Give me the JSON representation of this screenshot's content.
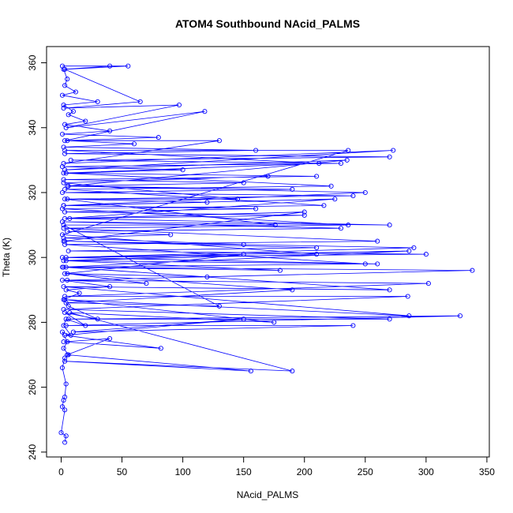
{
  "chart_data": {
    "type": "scatter",
    "title": "ATOM4 Southbound NAcid_PALMS",
    "xlabel": "NAcid_PALMS",
    "ylabel": "Theta (K)",
    "xlim": [
      -12,
      352
    ],
    "ylim": [
      238.5,
      365
    ],
    "x_ticks": [
      0,
      50,
      100,
      150,
      200,
      250,
      300,
      350
    ],
    "y_ticks": [
      240,
      260,
      280,
      300,
      320,
      340,
      360
    ],
    "grid": false,
    "legend": "none",
    "series_color": "#0000FF",
    "series": [
      {
        "style": "points-and-lines",
        "points": [
          [
            3,
            243
          ],
          [
            4,
            245
          ],
          [
            0,
            246
          ],
          [
            3,
            253
          ],
          [
            1,
            254
          ],
          [
            2,
            256
          ],
          [
            3,
            257
          ],
          [
            4,
            261
          ],
          [
            1,
            266
          ],
          [
            3,
            269
          ],
          [
            6,
            270
          ],
          [
            2,
            272
          ],
          [
            5,
            274
          ],
          [
            1,
            277
          ],
          [
            8,
            276
          ],
          [
            2,
            279
          ],
          [
            4,
            281
          ],
          [
            20,
            279
          ],
          [
            3,
            283
          ],
          [
            30,
            281
          ],
          [
            6,
            285
          ],
          [
            2,
            287
          ],
          [
            15,
            289
          ],
          [
            4,
            290
          ],
          [
            40,
            291
          ],
          [
            1,
            293
          ],
          [
            70,
            292
          ],
          [
            5,
            295
          ],
          [
            120,
            294
          ],
          [
            2,
            297
          ],
          [
            180,
            296
          ],
          [
            4,
            299
          ],
          [
            260,
            298
          ],
          [
            1,
            300
          ],
          [
            300,
            301
          ],
          [
            6,
            302
          ],
          [
            210,
            303
          ],
          [
            3,
            305
          ],
          [
            150,
            304
          ],
          [
            2,
            306
          ],
          [
            90,
            307
          ],
          [
            5,
            308
          ],
          [
            230,
            309
          ],
          [
            1,
            311
          ],
          [
            270,
            310
          ],
          [
            7,
            312
          ],
          [
            200,
            313
          ],
          [
            3,
            314
          ],
          [
            160,
            315
          ],
          [
            2,
            316
          ],
          [
            120,
            317
          ],
          [
            5,
            318
          ],
          [
            240,
            319
          ],
          [
            1,
            320
          ],
          [
            190,
            321
          ],
          [
            6,
            322
          ],
          [
            150,
            323
          ],
          [
            2,
            324
          ],
          [
            210,
            325
          ],
          [
            4,
            326
          ],
          [
            100,
            327
          ],
          [
            1,
            328
          ],
          [
            230,
            329
          ],
          [
            8,
            330
          ],
          [
            270,
            331
          ],
          [
            3,
            332
          ],
          [
            160,
            333
          ],
          [
            2,
            334
          ],
          [
            60,
            335
          ],
          [
            5,
            336
          ],
          [
            80,
            337
          ],
          [
            1,
            338
          ],
          [
            40,
            339
          ],
          [
            3,
            341
          ],
          [
            20,
            342
          ],
          [
            6,
            344
          ],
          [
            10,
            345
          ],
          [
            2,
            347
          ],
          [
            30,
            348
          ],
          [
            1,
            350
          ],
          [
            12,
            351
          ],
          [
            3,
            353
          ],
          [
            5,
            355
          ],
          [
            2,
            358
          ],
          [
            40,
            359
          ],
          [
            1,
            359
          ],
          [
            55,
            359
          ],
          [
            3,
            358
          ],
          [
            65,
            348
          ],
          [
            2,
            346
          ],
          [
            97,
            347
          ],
          [
            4,
            340
          ],
          [
            118,
            345
          ],
          [
            3,
            336
          ],
          [
            130,
            336
          ],
          [
            2,
            329
          ],
          [
            273,
            333
          ],
          [
            3,
            327
          ],
          [
            235,
            330
          ],
          [
            5,
            322
          ],
          [
            250,
            320
          ],
          [
            2,
            316
          ],
          [
            225,
            318
          ],
          [
            3,
            312
          ],
          [
            200,
            314
          ],
          [
            2,
            305
          ],
          [
            290,
            303
          ],
          [
            4,
            300
          ],
          [
            286,
            302
          ],
          [
            1,
            297
          ],
          [
            338,
            296
          ],
          [
            5,
            293
          ],
          [
            302,
            292
          ],
          [
            3,
            288
          ],
          [
            285,
            288
          ],
          [
            2,
            284
          ],
          [
            270,
            281
          ],
          [
            6,
            281
          ],
          [
            328,
            282
          ],
          [
            4,
            279
          ],
          [
            240,
            279
          ],
          [
            10,
            277
          ],
          [
            150,
            281
          ],
          [
            3,
            276
          ],
          [
            82,
            272
          ],
          [
            2,
            274
          ],
          [
            40,
            275
          ],
          [
            5,
            270
          ],
          [
            156,
            265
          ],
          [
            3,
            268
          ],
          [
            190,
            265
          ],
          [
            7,
            283
          ],
          [
            175,
            280
          ],
          [
            3,
            287
          ],
          [
            286,
            282
          ],
          [
            2,
            291
          ],
          [
            270,
            290
          ],
          [
            4,
            297
          ],
          [
            250,
            298
          ],
          [
            3,
            304
          ],
          [
            260,
            305
          ],
          [
            2,
            309
          ],
          [
            236,
            310
          ],
          [
            1,
            315
          ],
          [
            216,
            316
          ],
          [
            3,
            321
          ],
          [
            222,
            322
          ],
          [
            2,
            326
          ],
          [
            212,
            329
          ],
          [
            3,
            333
          ],
          [
            236,
            333
          ],
          [
            1,
            307
          ],
          [
            210,
            301
          ],
          [
            2,
            299
          ],
          [
            150,
            301
          ],
          [
            3,
            295
          ],
          [
            190,
            290
          ],
          [
            4,
            286
          ],
          [
            130,
            285
          ],
          [
            2,
            310
          ],
          [
            176,
            310
          ],
          [
            3,
            318
          ],
          [
            145,
            318
          ],
          [
            2,
            323
          ],
          [
            170,
            325
          ]
        ]
      }
    ]
  }
}
